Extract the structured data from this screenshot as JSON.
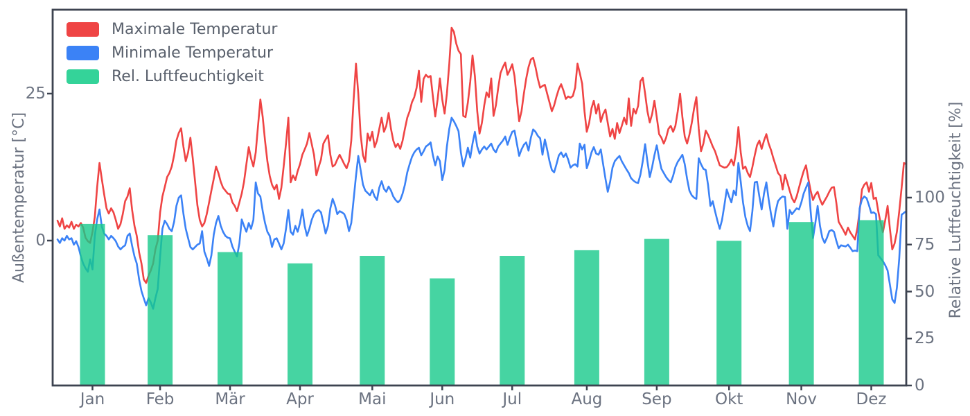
{
  "chart_data": {
    "type": "line+bar",
    "title": "",
    "x_axis": {
      "unit": "day_of_year",
      "domain": [
        1,
        365
      ],
      "tick_days": [
        16,
        45,
        75,
        105,
        136,
        166,
        196,
        228,
        258,
        289,
        320,
        350
      ],
      "tick_labels": [
        "Jan",
        "Feb",
        "Mär",
        "Apr",
        "Mai",
        "Jun",
        "Jul",
        "Aug",
        "Sep",
        "Okt",
        "Nov",
        "Dez"
      ]
    },
    "temp_axis": {
      "side": "left",
      "label": "Außentemperatur [°C]",
      "ticks": [
        0,
        25
      ],
      "range": [
        -24.6,
        39.3
      ]
    },
    "humidity_axis": {
      "side": "right",
      "label": "Relative Luftfeuchtigkeit [%]",
      "ticks": [
        0,
        25,
        50,
        75,
        100
      ],
      "range": [
        0,
        200
      ]
    },
    "legend_position": "upper-left",
    "grid": false,
    "series": [
      {
        "name": "Maximale Temperatur",
        "type": "line",
        "color": "#ef4444",
        "unit": "°C",
        "x_start_day": 1,
        "values": [
          3.4,
          2.4,
          3.8,
          2.0,
          2.6,
          2.2,
          3.2,
          2.0,
          2.7,
          2.4,
          3.0,
          2.2,
          0.5,
          -0.1,
          -0.4,
          1.5,
          4.0,
          9.1,
          13.2,
          10.5,
          7.9,
          5.5,
          4.6,
          5.5,
          4.8,
          3.5,
          2.0,
          2.8,
          4.5,
          6.7,
          7.5,
          8.9,
          5.2,
          2.5,
          0.8,
          -2.0,
          -3.9,
          -6.6,
          -7.2,
          -6.0,
          -5.1,
          -3.9,
          -1.5,
          0.0,
          4.8,
          7.5,
          9.1,
          10.8,
          11.5,
          12.6,
          14.5,
          17.0,
          18.3,
          19.1,
          16.0,
          13.5,
          15.0,
          17.5,
          14.0,
          10.0,
          6.0,
          3.5,
          2.4,
          3.0,
          4.5,
          6.5,
          8.5,
          10.5,
          12.6,
          11.5,
          10.0,
          9.0,
          8.5,
          8.0,
          7.9,
          6.5,
          5.9,
          5.0,
          6.5,
          8.0,
          10.0,
          13.0,
          15.9,
          14.0,
          12.6,
          15.0,
          19.5,
          24.0,
          21.0,
          17.0,
          13.5,
          11.0,
          9.5,
          8.7,
          9.5,
          7.1,
          9.0,
          12.6,
          16.5,
          20.9,
          9.9,
          11.1,
          10.3,
          11.8,
          13.0,
          14.6,
          15.5,
          16.5,
          18.3,
          16.5,
          14.6,
          11.1,
          12.5,
          13.8,
          16.5,
          17.2,
          17.9,
          14.6,
          12.6,
          12.9,
          13.8,
          14.6,
          13.8,
          13.0,
          12.3,
          13.5,
          17.0,
          24.0,
          30.1,
          25.0,
          18.0,
          14.5,
          13.4,
          18.2,
          17.0,
          18.5,
          15.9,
          17.0,
          19.0,
          20.9,
          18.5,
          19.5,
          21.7,
          19.0,
          17.0,
          15.9,
          16.5,
          15.6,
          17.0,
          19.0,
          20.9,
          22.0,
          23.5,
          24.4,
          26.0,
          28.9,
          23.6,
          27.5,
          28.2,
          27.8,
          28.0,
          24.5,
          21.1,
          24.0,
          27.6,
          24.0,
          21.6,
          25.0,
          30.0,
          36.2,
          35.5,
          33.5,
          32.3,
          31.7,
          21.2,
          21.0,
          23.5,
          27.0,
          31.5,
          28.0,
          22.0,
          18.2,
          20.0,
          23.0,
          25.2,
          24.4,
          27.6,
          21.2,
          23.0,
          26.0,
          28.5,
          29.5,
          30.3,
          28.2,
          29.0,
          30.0,
          28.0,
          24.0,
          20.3,
          22.0,
          25.0,
          27.5,
          29.5,
          30.8,
          31.1,
          29.5,
          27.5,
          26.0,
          26.3,
          26.5,
          25.0,
          23.5,
          22.0,
          23.0,
          24.5,
          25.8,
          26.6,
          25.5,
          24.1,
          24.5,
          24.3,
          24.6,
          26.0,
          30.1,
          28.5,
          26.7,
          22.0,
          18.5,
          20.0,
          22.5,
          23.8,
          21.6,
          23.2,
          20.2,
          21.5,
          22.3,
          20.0,
          17.7,
          19.0,
          17.3,
          20.0,
          18.3,
          19.5,
          20.9,
          19.8,
          24.2,
          19.5,
          22.4,
          21.6,
          22.9,
          27.1,
          27.7,
          25.0,
          22.0,
          20.1,
          21.5,
          23.8,
          21.0,
          18.1,
          17.5,
          16.5,
          17.5,
          19.0,
          19.5,
          18.5,
          19.5,
          22.0,
          25.0,
          21.0,
          17.7,
          16.5,
          18.0,
          20.0,
          22.5,
          24.4,
          19.0,
          15.2,
          16.5,
          18.7,
          18.0,
          17.0,
          16.0,
          15.2,
          14.0,
          12.8,
          12.6,
          12.4,
          12.5,
          13.0,
          13.8,
          12.8,
          15.0,
          19.3,
          15.0,
          12.2,
          12.6,
          11.5,
          10.8,
          12.5,
          14.5,
          16.2,
          17.0,
          15.6,
          17.0,
          18.1,
          16.5,
          15.4,
          14.0,
          12.8,
          11.5,
          11.0,
          8.7,
          11.2,
          9.9,
          8.5,
          7.2,
          6.5,
          7.5,
          9.0,
          10.5,
          11.8,
          12.8,
          10.5,
          8.5,
          6.9,
          7.8,
          8.3,
          7.0,
          6.1,
          6.8,
          7.5,
          8.3,
          9.0,
          9.1,
          6.5,
          3.2,
          2.5,
          1.8,
          1.0,
          2.2,
          1.4,
          0.8,
          0.2,
          2.0,
          5.0,
          8.7,
          9.5,
          9.9,
          8.3,
          9.8,
          7.1,
          7.3,
          5.0,
          3.0,
          1.4,
          3.5,
          5.9,
          2.0,
          -1.5,
          -0.5,
          1.5,
          5.0,
          9.0,
          13.2,
          13.0
        ]
      },
      {
        "name": "Minimale Temperatur",
        "type": "line",
        "color": "#3b82f6",
        "unit": "°C",
        "x_start_day": 1,
        "values": [
          0.2,
          -0.4,
          0.4,
          0.0,
          0.8,
          0.2,
          0.4,
          -0.7,
          -0.1,
          -1.1,
          -2.7,
          -3.9,
          -4.7,
          -5.3,
          -3.2,
          -4.9,
          0.8,
          3.6,
          5.3,
          2.4,
          1.2,
          0.8,
          0.2,
          0.8,
          0.4,
          -0.1,
          -1.0,
          -1.5,
          -1.1,
          -0.8,
          0.8,
          1.2,
          -0.9,
          -2.7,
          -3.9,
          -6.6,
          -8.6,
          -9.8,
          -11.0,
          -9.8,
          -10.5,
          -11.6,
          -9.8,
          -8.2,
          -2.7,
          2.0,
          3.4,
          2.8,
          2.0,
          1.6,
          3.2,
          5.9,
          7.3,
          7.7,
          4.6,
          2.0,
          0.4,
          -1.1,
          -1.5,
          -1.1,
          -0.7,
          -0.5,
          1.6,
          -1.9,
          -3.0,
          -4.3,
          -2.5,
          1.0,
          3.0,
          4.2,
          2.5,
          1.5,
          0.8,
          0.5,
          0.4,
          -1.0,
          -1.9,
          -2.7,
          -0.5,
          3.6,
          2.5,
          1.5,
          3.0,
          2.0,
          3.5,
          9.9,
          8.0,
          7.5,
          5.0,
          3.0,
          1.5,
          0.8,
          -1.1,
          0.2,
          0.4,
          -0.5,
          -1.5,
          -0.5,
          2.0,
          5.2,
          1.5,
          1.0,
          2.5,
          1.5,
          3.0,
          5.3,
          2.5,
          0.8,
          2.0,
          3.5,
          4.5,
          5.0,
          5.2,
          4.8,
          3.0,
          1.2,
          2.5,
          5.5,
          7.1,
          6.0,
          4.5,
          5.0,
          4.8,
          4.5,
          3.5,
          1.6,
          3.0,
          7.0,
          11.0,
          14.4,
          12.0,
          9.5,
          8.5,
          8.1,
          7.7,
          8.6,
          7.5,
          6.9,
          9.0,
          10.1,
          8.8,
          8.3,
          9.2,
          8.5,
          7.5,
          6.9,
          6.5,
          6.9,
          8.0,
          9.5,
          11.6,
          13.0,
          14.2,
          15.0,
          15.5,
          15.8,
          14.5,
          15.2,
          16.0,
          16.3,
          16.7,
          14.5,
          12.8,
          14.3,
          13.5,
          10.3,
          12.0,
          16.0,
          19.0,
          20.9,
          20.3,
          19.5,
          18.6,
          15.0,
          12.6,
          14.0,
          15.8,
          14.1,
          16.5,
          18.5,
          16.0,
          14.8,
          15.5,
          16.0,
          15.5,
          16.0,
          16.5,
          15.5,
          15.0,
          16.0,
          16.5,
          17.0,
          17.7,
          16.3,
          17.5,
          18.5,
          18.7,
          16.5,
          14.4,
          15.5,
          16.3,
          16.7,
          15.3,
          17.5,
          18.9,
          18.5,
          17.8,
          17.4,
          14.6,
          17.2,
          15.5,
          13.5,
          12.0,
          11.6,
          13.0,
          14.5,
          15.0,
          14.2,
          14.8,
          13.8,
          12.4,
          12.8,
          13.0,
          12.6,
          16.5,
          15.5,
          16.3,
          12.3,
          13.5,
          15.0,
          15.9,
          14.8,
          14.6,
          15.5,
          13.0,
          10.5,
          8.3,
          10.0,
          12.4,
          13.5,
          14.0,
          14.4,
          13.5,
          12.8,
          12.1,
          11.5,
          10.6,
          10.2,
          9.9,
          9.8,
          11.2,
          13.5,
          16.4,
          13.5,
          10.8,
          12.5,
          14.5,
          16.2,
          14.0,
          12.2,
          11.5,
          10.8,
          10.3,
          9.9,
          11.0,
          12.5,
          13.4,
          14.0,
          14.6,
          13.0,
          10.5,
          8.5,
          7.7,
          7.3,
          7.1,
          14.0,
          13.0,
          12.2,
          12.0,
          9.5,
          5.9,
          6.7,
          5.0,
          3.4,
          2.0,
          3.5,
          6.0,
          8.7,
          7.5,
          6.5,
          8.5,
          7.7,
          13.2,
          10.0,
          6.5,
          4.0,
          2.5,
          1.6,
          5.0,
          9.9,
          10.0,
          7.5,
          5.3,
          8.0,
          9.9,
          7.0,
          4.5,
          2.4,
          5.0,
          6.7,
          7.2,
          7.5,
          7.4,
          2.0,
          5.2,
          4.5,
          5.0,
          5.5,
          5.3,
          6.5,
          8.0,
          9.0,
          9.9,
          5.0,
          0.4,
          3.0,
          5.9,
          2.5,
          0.5,
          -0.4,
          0.5,
          1.6,
          1.8,
          1.5,
          0.0,
          -1.3,
          -0.8,
          -0.9,
          -1.0,
          -0.7,
          -1.2,
          -1.8,
          -1.7,
          -1.8,
          5.5,
          7.0,
          7.5,
          7.2,
          6.0,
          4.7,
          4.8,
          4.5,
          -2.5,
          -3.0,
          -3.5,
          -4.2,
          -5.1,
          -7.5,
          -10.0,
          -10.6,
          -8.0,
          -3.0,
          4.4,
          4.7,
          5.0
        ]
      },
      {
        "name": "Rel. Luftfeuchtigkeit",
        "type": "bar",
        "color": "#34d399",
        "bar_fill": "#18c98b",
        "bar_opacity": 0.8,
        "unit": "%",
        "categories": [
          "Jan",
          "Feb",
          "Mär",
          "Apr",
          "Mai",
          "Jun",
          "Jul",
          "Aug",
          "Sep",
          "Okt",
          "Nov",
          "Dez"
        ],
        "values": [
          86,
          80,
          71,
          65,
          69,
          57,
          69,
          72,
          78,
          77,
          87,
          88
        ]
      }
    ]
  }
}
